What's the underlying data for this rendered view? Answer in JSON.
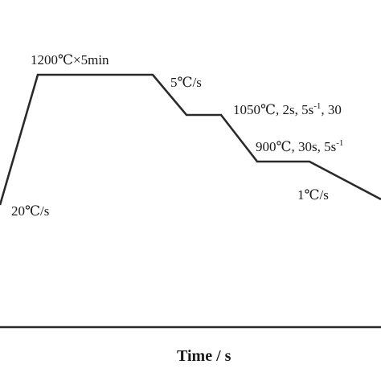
{
  "diagram": {
    "type": "heat-treatment-schedule",
    "x_axis_title": "Time / s",
    "labels": {
      "hold": "1200℃×5min",
      "heating_rate": "20℃/s",
      "cool_rate_1": "5℃/s",
      "deform_1": {
        "prefix": "1050℃, 2s, 5s",
        "exp": "-1",
        "suffix": ", 30"
      },
      "deform_2": {
        "prefix": "900℃, 30s, 5s",
        "exp": "-1"
      },
      "cool_rate_2": "1℃/s"
    },
    "colors": {
      "line": "#2a2a2a",
      "text": "#1a1a1a",
      "background": "#ffffff"
    }
  }
}
